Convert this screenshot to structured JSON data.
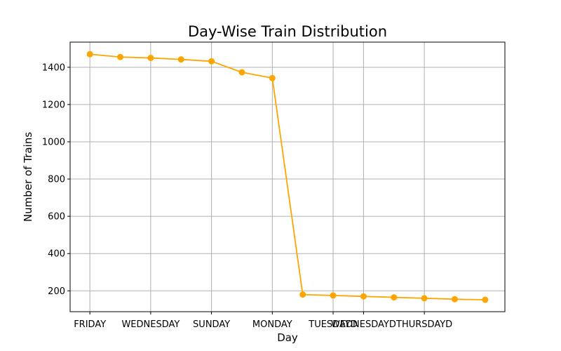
{
  "chart_data": {
    "type": "line",
    "title": "Day-Wise Train Distribution",
    "xlabel": "Day",
    "ylabel": "Number of Trains",
    "x_tick_labels": [
      "FRIDAY",
      "WEDNESDAY",
      "SUNDAY",
      "MONDAY",
      "TUESDAYD",
      "WEDNESDAYD",
      "THURSDAYD"
    ],
    "x_tick_positions": [
      0,
      2,
      4,
      6,
      8,
      9,
      11
    ],
    "y_ticks": [
      200,
      400,
      600,
      800,
      1000,
      1200,
      1400
    ],
    "ylim": [
      88,
      1535
    ],
    "xlim": [
      -0.65,
      13.65
    ],
    "grid": true,
    "series": [
      {
        "color": "#ffa500",
        "marker": "circle",
        "x": [
          0,
          1,
          2,
          3,
          4,
          5,
          6,
          7,
          8,
          9,
          10,
          11,
          12,
          13
        ],
        "values": [
          1470,
          1455,
          1450,
          1442,
          1432,
          1373,
          1342,
          180,
          175,
          170,
          165,
          160,
          155,
          152
        ]
      }
    ]
  }
}
